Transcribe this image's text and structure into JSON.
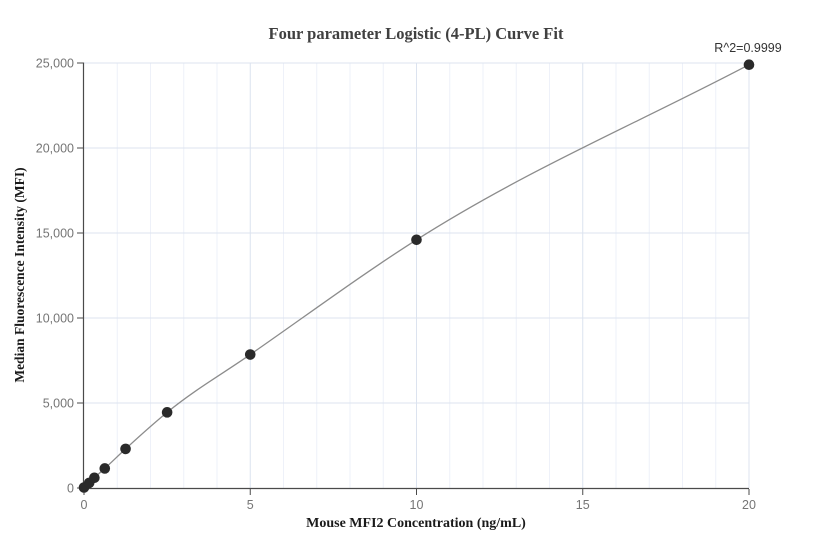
{
  "chart_data": {
    "type": "scatter",
    "title": "Four parameter Logistic (4-PL) Curve Fit",
    "annotation": "R^2=0.9999",
    "xlabel": "Mouse MFI2 Concentration (ng/mL)",
    "ylabel": "Median Fluorescence Intensity (MFI)",
    "xlim": [
      0,
      20
    ],
    "ylim": [
      0,
      25000
    ],
    "x_major_ticks": [
      0,
      5,
      10,
      15,
      20
    ],
    "x_tick_labels": [
      "0",
      "5",
      "10",
      "15",
      "20"
    ],
    "x_minor_tick_step": 1,
    "y_major_ticks": [
      0,
      5000,
      10000,
      15000,
      20000,
      25000
    ],
    "y_tick_labels": [
      "0",
      "5,000",
      "10,000",
      "15,000",
      "20,000",
      "25,000"
    ],
    "grid": true,
    "legend": false,
    "series": [
      {
        "name": "standard-curve-points",
        "points": [
          {
            "x": 0,
            "y": 30
          },
          {
            "x": 0.156,
            "y": 300
          },
          {
            "x": 0.3125,
            "y": 600
          },
          {
            "x": 0.625,
            "y": 1150
          },
          {
            "x": 1.25,
            "y": 2300
          },
          {
            "x": 2.5,
            "y": 4450
          },
          {
            "x": 5,
            "y": 7850
          },
          {
            "x": 10,
            "y": 14600
          },
          {
            "x": 20,
            "y": 24900
          }
        ]
      }
    ],
    "fit": "smooth 4-PL curve drawn through all points",
    "colors": {
      "point": "#2a2a2a",
      "fit_line": "#8c8c8c",
      "grid_major": "#dce3ef",
      "grid_minor": "#eef1f9",
      "axis": "#4a4a4a",
      "tick_label": "#757575",
      "title": "#404040",
      "axis_label": "#1a1a1a",
      "annotation": "#333333",
      "background": "#ffffff"
    }
  }
}
